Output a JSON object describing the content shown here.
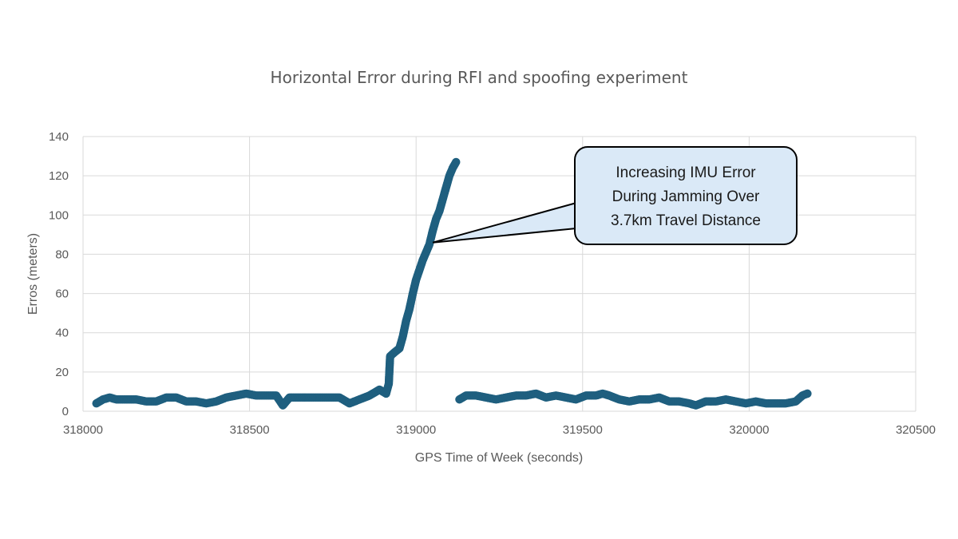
{
  "chart_data": {
    "type": "scatter",
    "title": "Horizontal Error during RFI and spoofing experiment",
    "xlabel": "GPS Time of Week (seconds)",
    "ylabel": "Erros (meters)",
    "xlim": [
      318000,
      320500
    ],
    "ylim": [
      0,
      140
    ],
    "x_ticks": [
      318000,
      318500,
      319000,
      319500,
      320000,
      320500
    ],
    "y_ticks": [
      0,
      20,
      40,
      60,
      80,
      100,
      120,
      140
    ],
    "x_tick_labels": [
      "318000",
      "318500",
      "319000",
      "319500",
      "320000",
      "320500"
    ],
    "y_tick_labels": [
      "0",
      "20",
      "40",
      "60",
      "80",
      "100",
      "120",
      "140"
    ],
    "grid": true,
    "marker_color": "#1f5f7f",
    "series": [
      {
        "points": [
          [
            318040,
            4
          ],
          [
            318060,
            6
          ],
          [
            318080,
            7
          ],
          [
            318100,
            6
          ],
          [
            318130,
            6
          ],
          [
            318160,
            6
          ],
          [
            318190,
            5
          ],
          [
            318220,
            5
          ],
          [
            318250,
            7
          ],
          [
            318280,
            7
          ],
          [
            318310,
            5
          ],
          [
            318340,
            5
          ],
          [
            318370,
            4
          ],
          [
            318400,
            5
          ],
          [
            318430,
            7
          ],
          [
            318460,
            8
          ],
          [
            318490,
            9
          ],
          [
            318520,
            8
          ],
          [
            318550,
            8
          ],
          [
            318580,
            8
          ],
          [
            318600,
            3
          ],
          [
            318620,
            7
          ],
          [
            318650,
            7
          ],
          [
            318680,
            7
          ],
          [
            318710,
            7
          ],
          [
            318740,
            7
          ],
          [
            318770,
            7
          ],
          [
            318800,
            4
          ],
          [
            318830,
            6
          ],
          [
            318860,
            8
          ],
          [
            318890,
            11
          ],
          [
            318910,
            9
          ],
          [
            318918,
            14
          ],
          [
            318922,
            28
          ],
          [
            318935,
            30
          ],
          [
            318950,
            32
          ],
          [
            318960,
            38
          ],
          [
            318970,
            46
          ],
          [
            318980,
            52
          ],
          [
            318990,
            60
          ],
          [
            319000,
            67
          ],
          [
            319010,
            72
          ],
          [
            319020,
            77
          ],
          [
            319030,
            81
          ],
          [
            319040,
            85
          ],
          [
            319050,
            92
          ],
          [
            319060,
            98
          ],
          [
            319070,
            102
          ],
          [
            319080,
            108
          ],
          [
            319090,
            114
          ],
          [
            319100,
            120
          ],
          [
            319110,
            124
          ],
          [
            319120,
            127
          ]
        ]
      },
      {
        "points": [
          [
            319130,
            6
          ],
          [
            319150,
            8
          ],
          [
            319180,
            8
          ],
          [
            319210,
            7
          ],
          [
            319240,
            6
          ],
          [
            319270,
            7
          ],
          [
            319300,
            8
          ],
          [
            319330,
            8
          ],
          [
            319360,
            9
          ],
          [
            319390,
            7
          ],
          [
            319420,
            8
          ],
          [
            319450,
            7
          ],
          [
            319480,
            6
          ],
          [
            319510,
            8
          ],
          [
            319540,
            8
          ],
          [
            319560,
            9
          ],
          [
            319580,
            8
          ],
          [
            319610,
            6
          ],
          [
            319640,
            5
          ],
          [
            319670,
            6
          ],
          [
            319700,
            6
          ],
          [
            319730,
            7
          ],
          [
            319760,
            5
          ],
          [
            319790,
            5
          ],
          [
            319820,
            4
          ],
          [
            319840,
            3
          ],
          [
            319870,
            5
          ],
          [
            319900,
            5
          ],
          [
            319930,
            6
          ],
          [
            319960,
            5
          ],
          [
            319990,
            4
          ],
          [
            320020,
            5
          ],
          [
            320050,
            4
          ],
          [
            320080,
            4
          ],
          [
            320110,
            4
          ],
          [
            320140,
            5
          ],
          [
            320160,
            8
          ],
          [
            320175,
            9
          ]
        ]
      }
    ],
    "annotation": {
      "lines": [
        "Increasing IMU Error",
        "During Jamming Over",
        "3.7km Travel Distance"
      ],
      "anchor": [
        319050,
        86
      ],
      "fill": "#dae9f7",
      "stroke": "#000000"
    }
  }
}
